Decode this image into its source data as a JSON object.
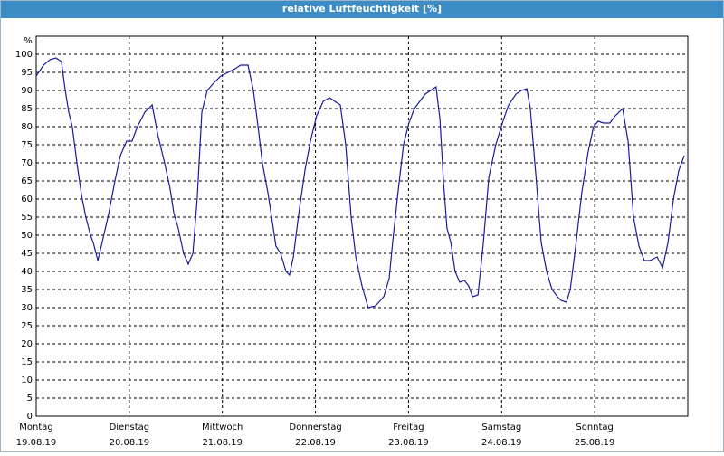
{
  "chart_data": {
    "type": "line",
    "title": "relative Luftfeuchtigkeit [%]",
    "y_unit": "%",
    "xlim": [
      0,
      168
    ],
    "xticks": [
      {
        "value": 0,
        "label": "Montag",
        "date": "19.08.19"
      },
      {
        "value": 24,
        "label": "Dienstag",
        "date": "20.08.19"
      },
      {
        "value": 48,
        "label": "Mittwoch",
        "date": "21.08.19"
      },
      {
        "value": 72,
        "label": "Donnerstag",
        "date": "22.08.19"
      },
      {
        "value": 96,
        "label": "Freitag",
        "date": "23.08.19"
      },
      {
        "value": 120,
        "label": "Samstag",
        "date": "24.08.19"
      },
      {
        "value": 144,
        "label": "Sonntag",
        "date": "25.08.19"
      }
    ],
    "ylim": [
      0,
      105
    ],
    "yticks": [
      0,
      5,
      10,
      15,
      20,
      25,
      30,
      35,
      40,
      45,
      50,
      55,
      60,
      65,
      70,
      75,
      80,
      85,
      90,
      95,
      100
    ],
    "grid": true,
    "series": [
      {
        "name": "relative Luftfeuchtigkeit",
        "color": "#1a1aa0",
        "x": [
          0,
          1.9,
          3.5,
          5.1,
          6.5,
          7.5,
          8.4,
          9.3,
          10.5,
          11.7,
          12.8,
          14,
          14.7,
          15.9,
          17,
          18.7,
          20.3,
          21.7,
          23.3,
          24.7,
          26.1,
          28,
          29.9,
          31.3,
          33.1,
          34.5,
          35.5,
          36.6,
          38,
          39.2,
          40.4,
          41.5,
          42.7,
          44.1,
          45.7,
          47.6,
          49.5,
          51.3,
          52.7,
          54.6,
          56,
          57.2,
          58.3,
          59.7,
          60.7,
          61.8,
          63,
          64.4,
          65.3,
          66.3,
          67.7,
          69.3,
          70.7,
          72.3,
          74,
          75.6,
          77,
          78.4,
          79.8,
          81.2,
          82.4,
          84,
          85.6,
          87.5,
          89.6,
          91,
          91.9,
          93.3,
          94.7,
          96.1,
          97.5,
          98.9,
          100.3,
          101.7,
          103.1,
          104.1,
          105,
          105.9,
          106.9,
          108,
          109.2,
          110.4,
          111.5,
          112.5,
          113.9,
          115.3,
          116.7,
          118.5,
          120.2,
          121.8,
          123.7,
          125.1,
          126.5,
          127.4,
          128.8,
          130.2,
          131.6,
          133,
          134.4,
          135.3,
          136.7,
          137.7,
          139.1,
          140.7,
          142.3,
          143.7,
          144.9,
          146.3,
          147.9,
          149.3,
          151.2,
          152.6,
          154,
          155.4,
          156.8,
          158.2,
          160.1,
          161.5,
          162.9,
          164.3,
          165.7,
          167.1
        ],
        "values": [
          94,
          97,
          98.5,
          99,
          98,
          90,
          84,
          80,
          70,
          61,
          55,
          50,
          48,
          43,
          48,
          56,
          65,
          72,
          76,
          76,
          80,
          84,
          86,
          78,
          70,
          63,
          56,
          52,
          45,
          42,
          45,
          60,
          84,
          90,
          92,
          94,
          95,
          96,
          97,
          97,
          90,
          80,
          70,
          62,
          55,
          47,
          45,
          40,
          39,
          44,
          56,
          68,
          76,
          83,
          87,
          88,
          87,
          86,
          75,
          55,
          44,
          36,
          30,
          30.5,
          33,
          38,
          48,
          62,
          75,
          81,
          85,
          87,
          89,
          90,
          91,
          82,
          65,
          52,
          48,
          40,
          37,
          37.5,
          36,
          33,
          33.5,
          48,
          66,
          75,
          81,
          86,
          89,
          90,
          90.5,
          85,
          67,
          48,
          40,
          35,
          33,
          32,
          31.5,
          35,
          47,
          62,
          73,
          80,
          81.5,
          81,
          81,
          83,
          85,
          76,
          55,
          47,
          43,
          43,
          44,
          41,
          48,
          60,
          68,
          72
        ]
      }
    ]
  }
}
